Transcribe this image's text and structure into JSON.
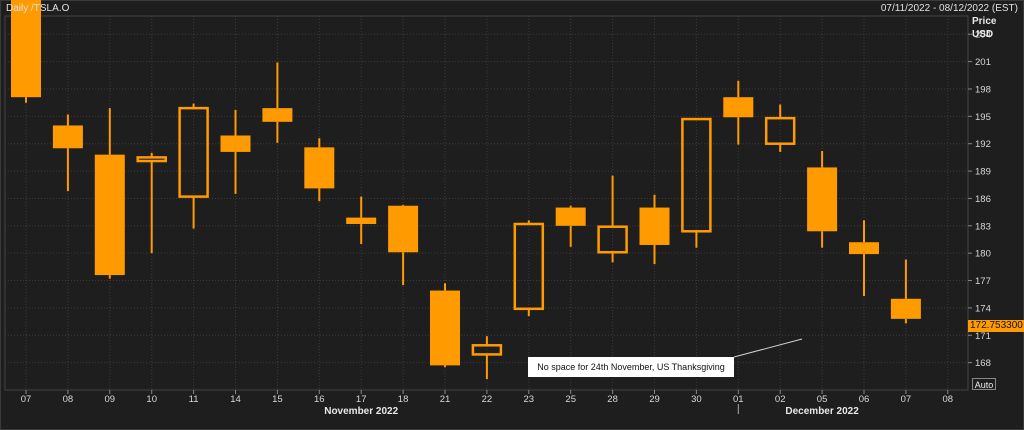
{
  "header": {
    "title": "Daily /TSLA.O",
    "date_range": "07/11/2022 - 08/12/2022 (EST)"
  },
  "price_axis": {
    "caption_line1": "Price",
    "caption_line2": "USD",
    "ticks": [
      "204",
      "201",
      "198",
      "195",
      "192",
      "189",
      "186",
      "183",
      "180",
      "177",
      "174",
      "171",
      "168"
    ],
    "tick_values": [
      204,
      201,
      198,
      195,
      192,
      189,
      186,
      183,
      180,
      177,
      174,
      171,
      168
    ],
    "last_price_label": "172.753300",
    "auto_label": "Auto"
  },
  "annotation": {
    "text": "No space for 24th November, US Thanksgiving"
  },
  "colors": {
    "candle": "#ff9a00",
    "background": "#1e1e1e",
    "grid": "#3c3c3c",
    "text": "#d8d8d8"
  },
  "chart_data": {
    "type": "candlestick",
    "title": "Daily /TSLA.O",
    "ylabel": "Price USD",
    "ylim": [
      165,
      206
    ],
    "grid": true,
    "x_tick_labels": [
      "07",
      "08",
      "09",
      "10",
      "11",
      "14",
      "15",
      "16",
      "17",
      "18",
      "21",
      "22",
      "23",
      "25",
      "28",
      "29",
      "30",
      "01",
      "02",
      "05",
      "06",
      "07",
      "08"
    ],
    "month_labels": [
      {
        "label": "November 2022",
        "under_index": 8
      },
      {
        "label": "December 2022",
        "under_index": 19
      }
    ],
    "candles": [
      {
        "date": "07",
        "open": 197.1,
        "high": 208.9,
        "low": 196.5,
        "close": 208.3,
        "hollow": false
      },
      {
        "date": "08",
        "open": 194.0,
        "high": 195.2,
        "low": 186.8,
        "close": 191.5,
        "hollow": false
      },
      {
        "date": "09",
        "open": 190.8,
        "high": 195.9,
        "low": 177.2,
        "close": 177.6,
        "hollow": false
      },
      {
        "date": "10",
        "open": 190.1,
        "high": 191.0,
        "low": 180.0,
        "close": 190.5,
        "hollow": true
      },
      {
        "date": "11",
        "open": 186.2,
        "high": 196.4,
        "low": 182.7,
        "close": 195.9,
        "hollow": true
      },
      {
        "date": "14",
        "open": 192.9,
        "high": 195.7,
        "low": 186.5,
        "close": 191.1,
        "hollow": false
      },
      {
        "date": "15",
        "open": 195.9,
        "high": 200.9,
        "low": 192.1,
        "close": 194.4,
        "hollow": false
      },
      {
        "date": "16",
        "open": 191.6,
        "high": 192.6,
        "low": 185.7,
        "close": 187.1,
        "hollow": false
      },
      {
        "date": "17",
        "open": 183.9,
        "high": 186.2,
        "low": 181.0,
        "close": 183.2,
        "hollow": false
      },
      {
        "date": "18",
        "open": 185.2,
        "high": 185.3,
        "low": 176.5,
        "close": 180.1,
        "hollow": false
      },
      {
        "date": "21",
        "open": 175.9,
        "high": 176.7,
        "low": 167.5,
        "close": 167.7,
        "hollow": false
      },
      {
        "date": "22",
        "open": 168.9,
        "high": 170.9,
        "low": 166.2,
        "close": 169.9,
        "hollow": true
      },
      {
        "date": "23",
        "open": 173.9,
        "high": 183.6,
        "low": 173.1,
        "close": 183.2,
        "hollow": true
      },
      {
        "date": "25",
        "open": 185.0,
        "high": 185.2,
        "low": 180.7,
        "close": 183.0,
        "hollow": false
      },
      {
        "date": "28",
        "open": 180.1,
        "high": 188.5,
        "low": 179.0,
        "close": 182.9,
        "hollow": true
      },
      {
        "date": "29",
        "open": 185.0,
        "high": 186.4,
        "low": 178.8,
        "close": 180.9,
        "hollow": false
      },
      {
        "date": "30",
        "open": 182.4,
        "high": 194.8,
        "low": 180.6,
        "close": 194.7,
        "hollow": true
      },
      {
        "date": "01",
        "open": 197.1,
        "high": 198.9,
        "low": 191.9,
        "close": 194.9,
        "hollow": false
      },
      {
        "date": "02",
        "open": 192.0,
        "high": 196.3,
        "low": 191.1,
        "close": 194.8,
        "hollow": true
      },
      {
        "date": "05",
        "open": 189.4,
        "high": 191.2,
        "low": 180.6,
        "close": 182.4,
        "hollow": false
      },
      {
        "date": "06",
        "open": 181.2,
        "high": 183.6,
        "low": 175.3,
        "close": 179.9,
        "hollow": false
      },
      {
        "date": "07",
        "open": 175.0,
        "high": 179.3,
        "low": 172.3,
        "close": 172.8,
        "hollow": false
      }
    ]
  }
}
